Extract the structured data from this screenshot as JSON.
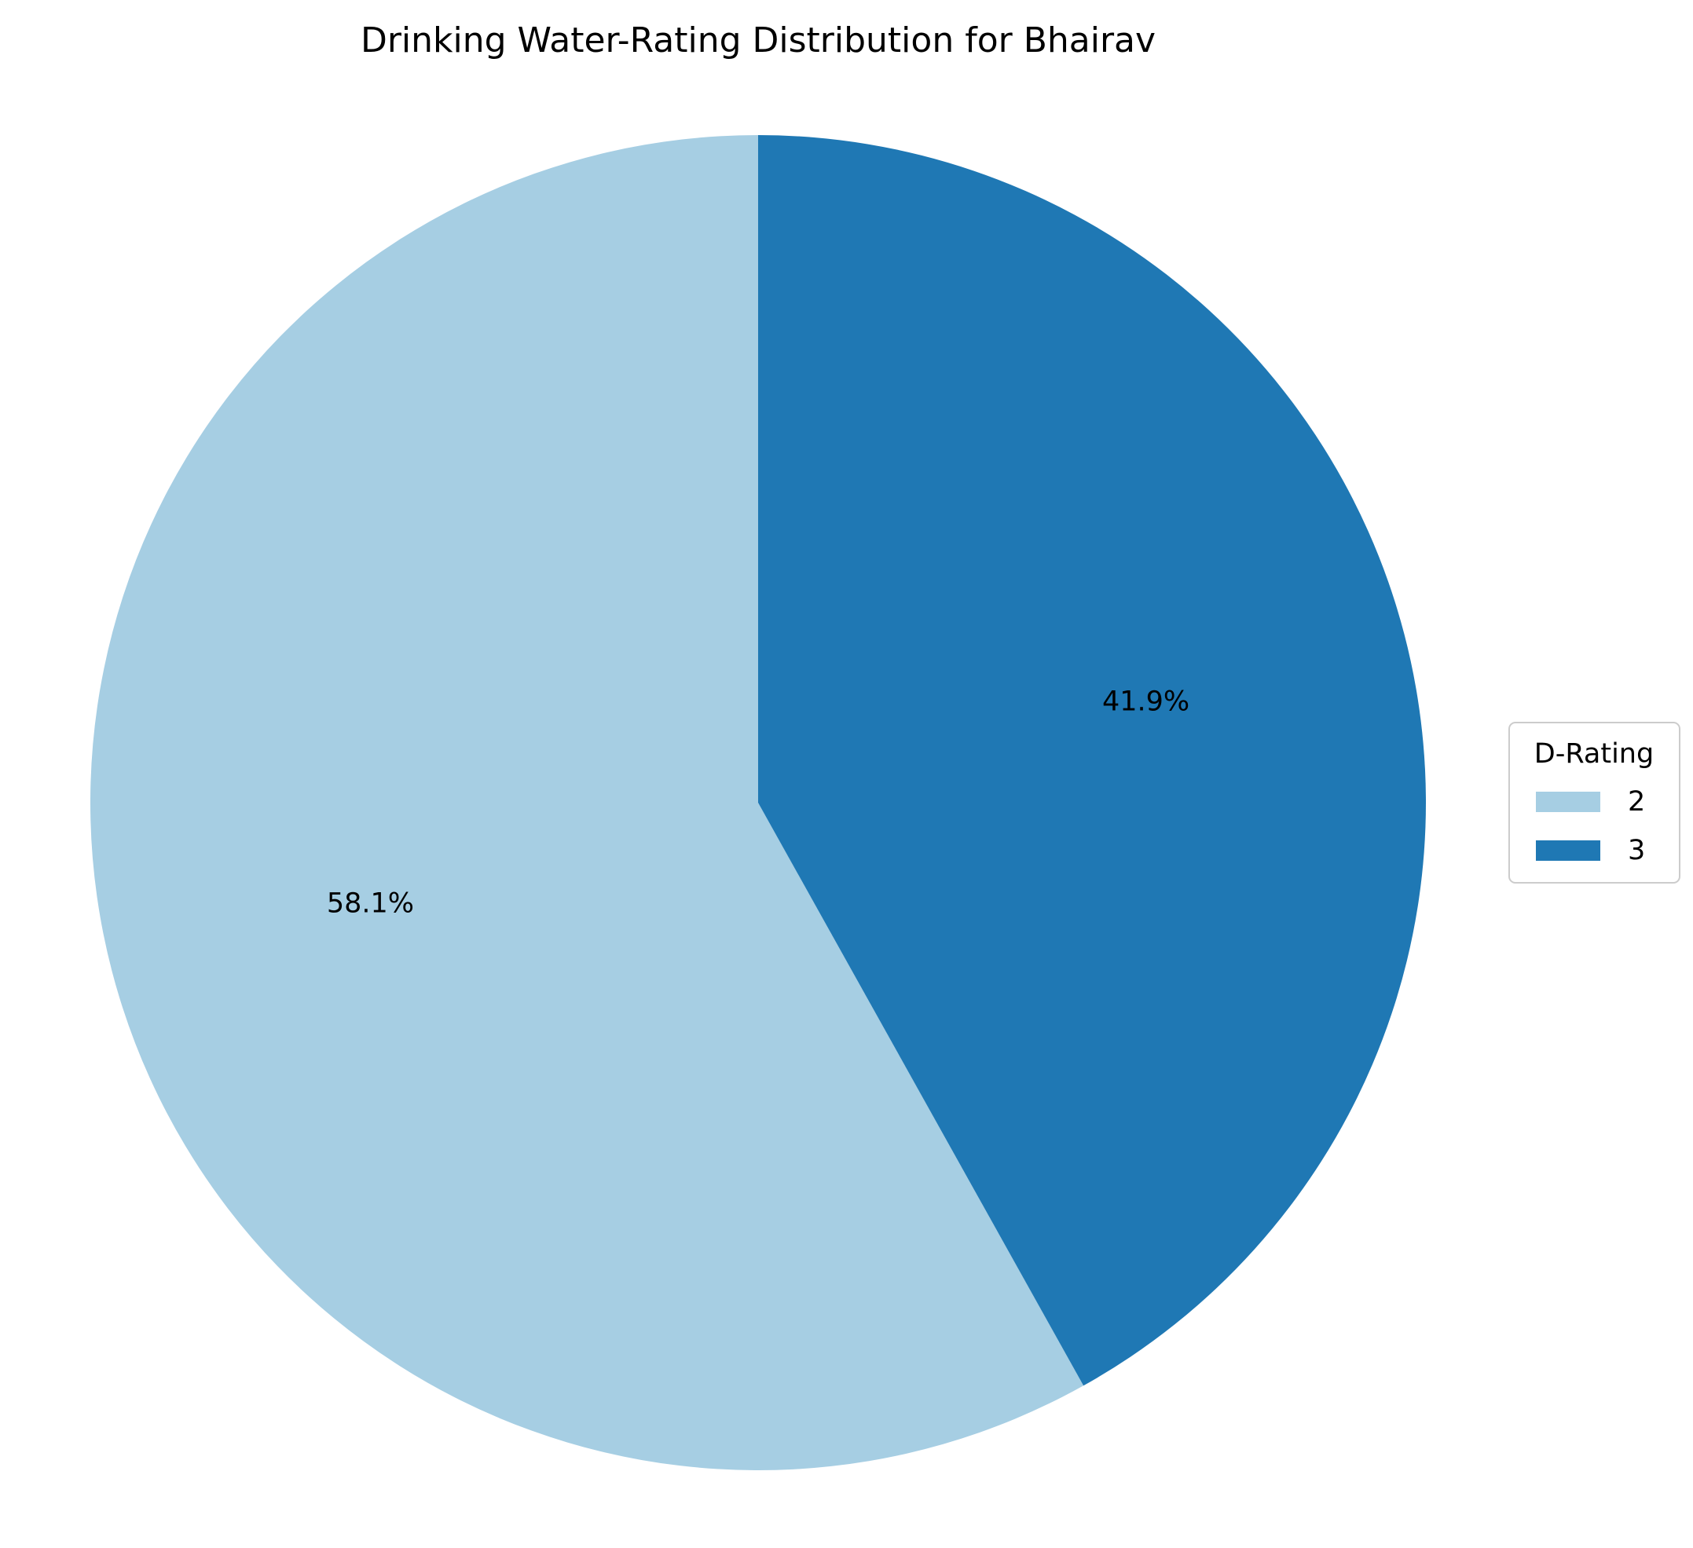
{
  "chart_data": {
    "type": "pie",
    "title": "Drinking Water-Rating Distribution for Bhairav",
    "legend_title": "D-Rating",
    "legend_position": "center-right",
    "start_angle_deg": 90,
    "direction": "counterclockwise",
    "slices": [
      {
        "label": "2",
        "value": 58.1,
        "display": "58.1%",
        "color": "#a6cee3"
      },
      {
        "label": "3",
        "value": 41.9,
        "display": "41.9%",
        "color": "#1f78b4"
      }
    ]
  }
}
